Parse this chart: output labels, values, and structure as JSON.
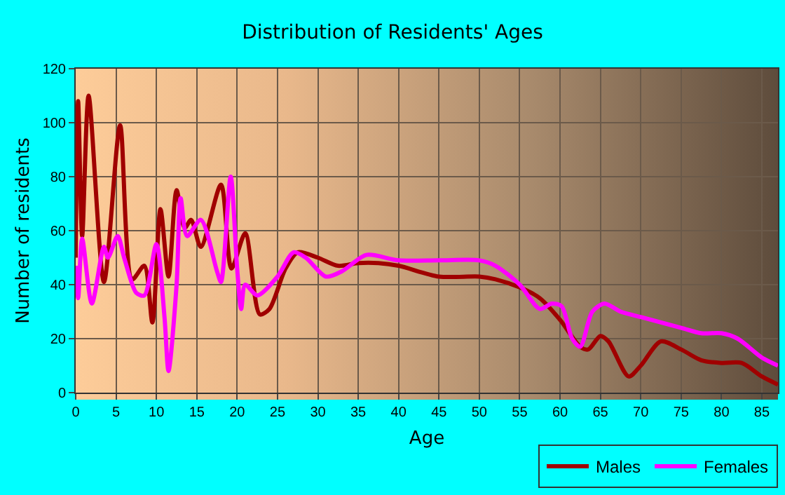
{
  "chart_data": {
    "type": "line",
    "title": "Distribution of Residents' Ages",
    "xlabel": "Age",
    "ylabel": "Number of residents",
    "xlim": [
      0,
      87
    ],
    "xticks": [
      0,
      5,
      10,
      15,
      20,
      25,
      30,
      35,
      40,
      45,
      50,
      55,
      60,
      65,
      70,
      75,
      80,
      85
    ],
    "ylim": [
      0,
      120
    ],
    "yticks": [
      0,
      20,
      40,
      60,
      80,
      100,
      120
    ],
    "grid": true,
    "legend": "bottom right",
    "line_style": "solid",
    "marker": "none",
    "series": [
      {
        "name": "Males",
        "color": "#a00000",
        "x": [
          0,
          0.3,
          0.8,
          1.6,
          3.5,
          5.5,
          7,
          8.5,
          9.5,
          10.5,
          11.5,
          12.5,
          13.5,
          14.3,
          15.5,
          18,
          19.3,
          21,
          22.8,
          24,
          26,
          27.5,
          30,
          32.5,
          35,
          37.5,
          40,
          45,
          50,
          52,
          55,
          57.5,
          60,
          62.5,
          63.5,
          65,
          66,
          68.5,
          70,
          72.5,
          75,
          77.5,
          80,
          82.5,
          85,
          87
        ],
        "values": [
          50,
          108,
          58,
          110,
          41,
          99,
          42,
          47,
          26,
          68,
          43,
          75,
          61,
          64,
          54,
          77,
          46,
          59,
          29,
          31,
          46,
          52,
          50,
          47,
          48,
          48,
          47,
          43,
          43,
          42,
          39,
          35,
          27,
          17,
          16,
          21,
          19,
          6,
          10,
          19,
          16,
          12,
          11,
          11,
          6,
          3
        ]
      },
      {
        "name": "Females",
        "color": "#ff00ff",
        "x": [
          0,
          0.3,
          0.8,
          2,
          3.5,
          4,
          5.2,
          6,
          7.5,
          8.5,
          10,
          11,
          11.5,
          12.5,
          13,
          13.8,
          15.5,
          17.5,
          18,
          19.2,
          20,
          20.5,
          21,
          22.5,
          25,
          27,
          28.5,
          31,
          33,
          36,
          40,
          45,
          50,
          52,
          55,
          57.5,
          59,
          60.2,
          61.5,
          62.5,
          64,
          65.5,
          67.5,
          70,
          75,
          77.5,
          80,
          82,
          85,
          87
        ],
        "values": [
          47,
          35,
          57,
          33,
          54,
          50,
          58,
          50,
          37,
          36,
          55,
          28,
          8,
          40,
          72,
          58,
          64,
          45,
          41,
          80,
          46,
          31,
          40,
          36,
          43,
          52,
          50,
          43,
          45,
          51,
          49,
          49,
          49,
          47,
          40,
          31,
          33,
          32,
          20,
          17,
          30,
          33,
          30,
          28,
          24,
          22,
          22,
          20,
          13,
          10
        ]
      }
    ]
  }
}
